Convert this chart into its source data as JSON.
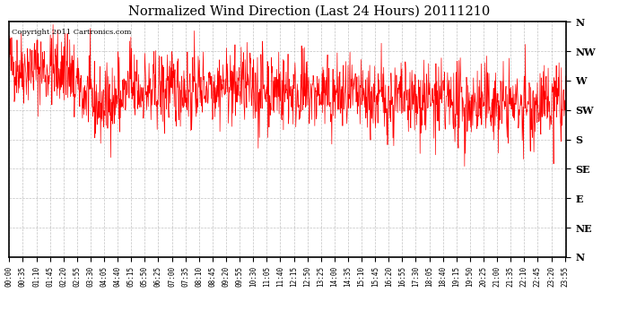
{
  "title": "Normalized Wind Direction (Last 24 Hours) 20111210",
  "copyright_text": "Copyright 2011 Cartronics.com",
  "line_color": "#ff0000",
  "bg_color": "#ffffff",
  "plot_bg_color": "#ffffff",
  "grid_color": "#999999",
  "ytick_labels": [
    "N",
    "NW",
    "W",
    "SW",
    "S",
    "SE",
    "E",
    "NE",
    "N"
  ],
  "ytick_values": [
    360,
    315,
    270,
    225,
    180,
    135,
    90,
    45,
    0
  ],
  "ylim": [
    0,
    360
  ],
  "seed": 42,
  "n_points": 1440,
  "noise_amp": 28,
  "spike_amp": 50,
  "n_spikes": 60
}
